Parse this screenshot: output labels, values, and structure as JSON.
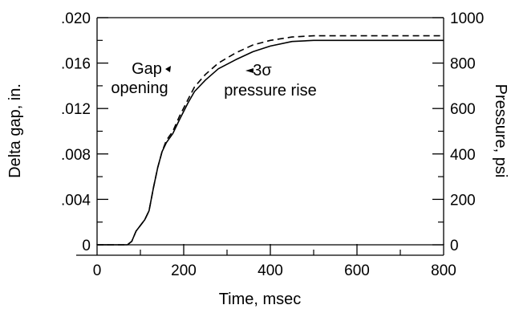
{
  "chart_data": {
    "type": "line",
    "xlabel": "Time, msec",
    "ylabel_left": "Delta gap, in.",
    "ylabel_right": "Pressure, psi",
    "xlim": [
      0,
      800
    ],
    "ylim_left": [
      0,
      0.02
    ],
    "ylim_right": [
      0,
      1000
    ],
    "x_ticks": [
      "0",
      "200",
      "400",
      "600",
      "800"
    ],
    "y_left_ticks": [
      "0",
      ".004",
      ".008",
      ".012",
      ".016",
      ".020"
    ],
    "y_right_ticks": [
      "0",
      "200",
      "400",
      "600",
      "800",
      "1000"
    ],
    "grid": false,
    "series": [
      {
        "name": "Gap opening",
        "axis": "left",
        "style": "solid",
        "points": [
          [
            0,
            0
          ],
          [
            70,
            0
          ],
          [
            80,
            0.0003
          ],
          [
            90,
            0.0012
          ],
          [
            110,
            0.0022
          ],
          [
            120,
            0.003
          ],
          [
            130,
            0.005
          ],
          [
            140,
            0.0068
          ],
          [
            150,
            0.0082
          ],
          [
            160,
            0.009
          ],
          [
            175,
            0.0098
          ],
          [
            190,
            0.011
          ],
          [
            210,
            0.0125
          ],
          [
            225,
            0.0135
          ],
          [
            250,
            0.0145
          ],
          [
            280,
            0.0155
          ],
          [
            320,
            0.0163
          ],
          [
            360,
            0.017
          ],
          [
            400,
            0.0175
          ],
          [
            450,
            0.0179
          ],
          [
            500,
            0.018
          ],
          [
            800,
            0.018
          ]
        ]
      },
      {
        "name": "3σ pressure rise",
        "axis": "left",
        "style": "dashed",
        "points": [
          [
            0,
            0
          ],
          [
            70,
            0
          ],
          [
            80,
            0.0003
          ],
          [
            90,
            0.0012
          ],
          [
            110,
            0.0022
          ],
          [
            120,
            0.003
          ],
          [
            130,
            0.005
          ],
          [
            140,
            0.0068
          ],
          [
            150,
            0.0082
          ],
          [
            160,
            0.0092
          ],
          [
            175,
            0.01
          ],
          [
            190,
            0.0113
          ],
          [
            210,
            0.0128
          ],
          [
            225,
            0.0139
          ],
          [
            250,
            0.015
          ],
          [
            280,
            0.016
          ],
          [
            320,
            0.0169
          ],
          [
            360,
            0.0176
          ],
          [
            400,
            0.018
          ],
          [
            450,
            0.0183
          ],
          [
            500,
            0.0184
          ],
          [
            800,
            0.0184
          ]
        ]
      }
    ],
    "annotations": [
      {
        "text_lines": [
          "Gap",
          "opening"
        ],
        "x": 175,
        "y": 0.0138
      },
      {
        "text_lines": [
          "3σ",
          "pressure rise"
        ],
        "x": 380,
        "y": 0.0141
      }
    ]
  }
}
